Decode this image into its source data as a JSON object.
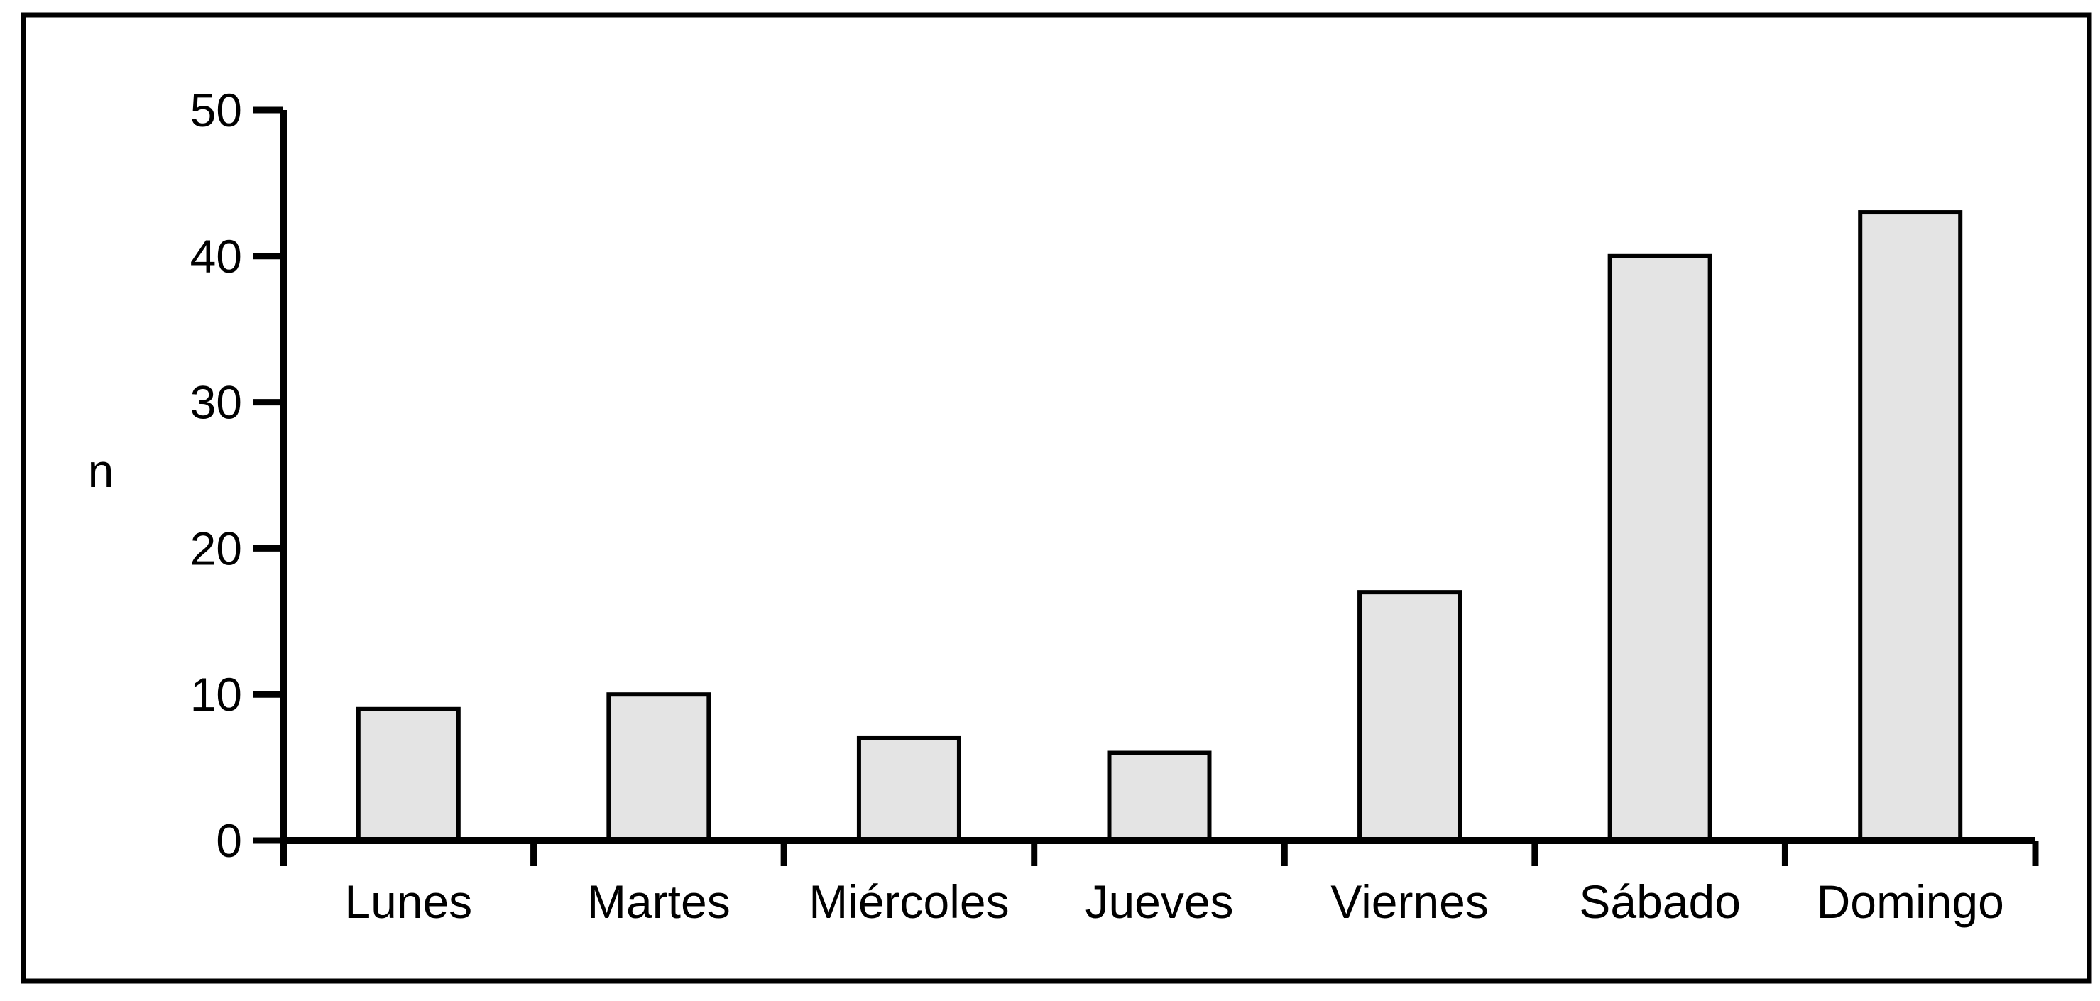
{
  "chart_data": {
    "type": "bar",
    "title": "",
    "ylabel": "n",
    "xlabel": "",
    "categories": [
      "Lunes",
      "Martes",
      "Miércoles",
      "Jueves",
      "Viernes",
      "Sábado",
      "Domingo"
    ],
    "values": [
      9,
      10,
      7,
      6,
      17,
      40,
      43
    ],
    "ylim": [
      0,
      50
    ],
    "yticks": [
      0,
      10,
      20,
      30,
      40,
      50
    ],
    "grid": false,
    "legend": false,
    "bar_fill": "#e4e4e4",
    "bar_stroke": "#000000",
    "axis_color": "#000000",
    "frame_color": "#000000",
    "background": "#ffffff"
  }
}
